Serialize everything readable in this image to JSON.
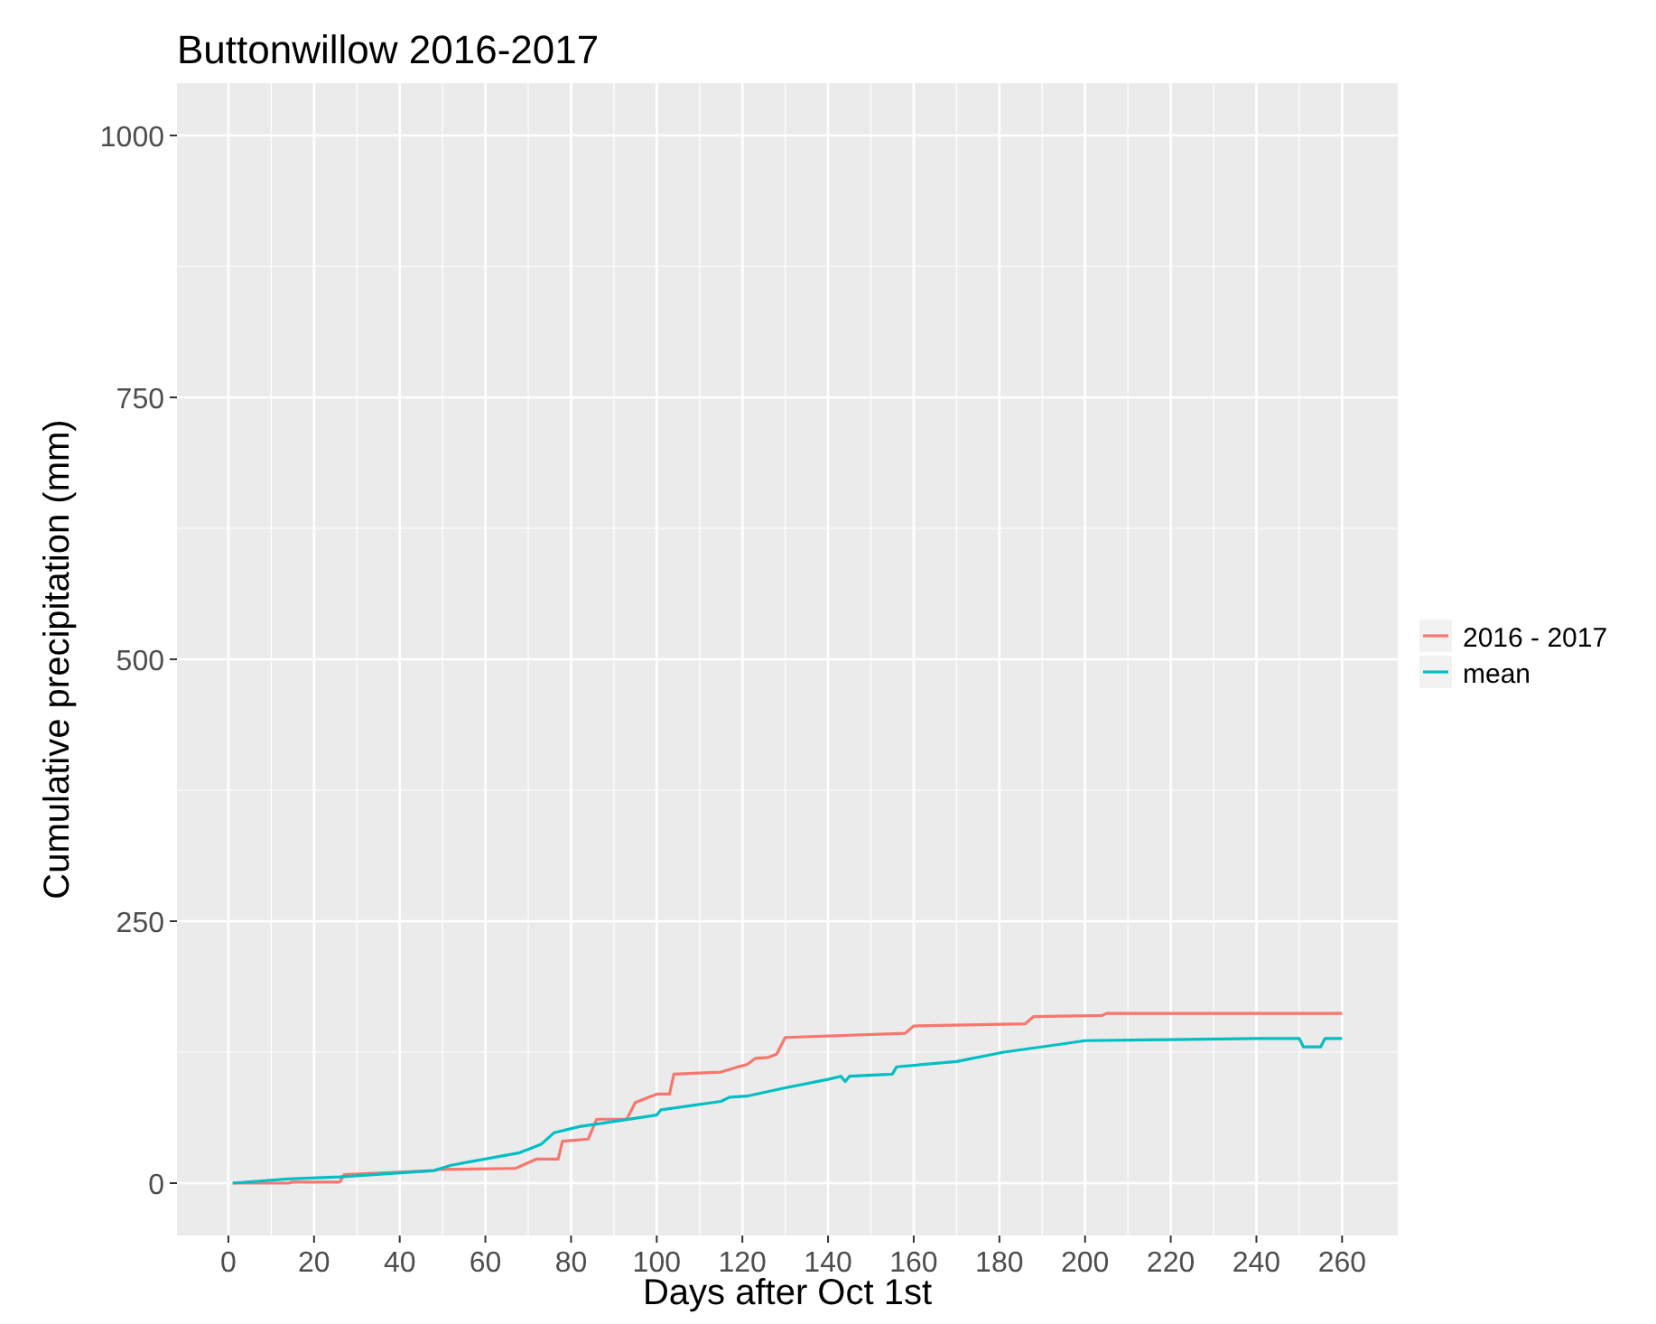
{
  "chart_data": {
    "type": "line",
    "title": "Buttonwillow 2016-2017",
    "xlabel": "Days after Oct 1st",
    "ylabel": "Cumulative precipitation (mm)",
    "xlim": [
      -12,
      273
    ],
    "xticks": [
      0,
      20,
      40,
      60,
      80,
      100,
      120,
      140,
      160,
      180,
      200,
      220,
      240,
      260
    ],
    "ylim": [
      -50,
      1050
    ],
    "yticks": [
      0,
      250,
      500,
      750,
      1000
    ],
    "grid": true,
    "legend": "right",
    "line_style": "solid",
    "marker": "none",
    "series": [
      {
        "name": "2016 - 2017",
        "color": "#f8766d",
        "x": [
          1,
          14,
          15,
          26,
          27,
          48,
          49,
          66,
          67,
          72,
          77,
          78,
          84,
          86,
          93,
          95,
          100,
          103,
          104,
          115,
          119,
          121,
          123,
          126,
          128,
          130,
          158,
          160,
          186,
          188,
          204,
          205,
          260
        ],
        "values": [
          0,
          0,
          1,
          1,
          8,
          12,
          13,
          14,
          14,
          23,
          23,
          40,
          42,
          61,
          61,
          77,
          85,
          85,
          104,
          106,
          111,
          113,
          119,
          120,
          123,
          139,
          143,
          150,
          152,
          159,
          160,
          162,
          162
        ]
      },
      {
        "name": "mean",
        "color": "#00bfc4",
        "x": [
          1,
          14,
          26,
          48,
          52,
          68,
          73,
          76,
          82,
          87,
          100,
          101,
          115,
          117,
          121,
          130,
          140,
          143,
          144,
          145,
          155,
          156,
          170,
          181,
          195,
          200,
          220,
          240,
          250,
          251,
          252,
          255,
          256,
          260
        ],
        "values": [
          0,
          4,
          6,
          12,
          17,
          29,
          37,
          48,
          54,
          57,
          65,
          70,
          78,
          82,
          83,
          91,
          99,
          102,
          97,
          102,
          104,
          111,
          116,
          125,
          133,
          136,
          137,
          138,
          138,
          130,
          130,
          130,
          138,
          138
        ]
      }
    ]
  }
}
